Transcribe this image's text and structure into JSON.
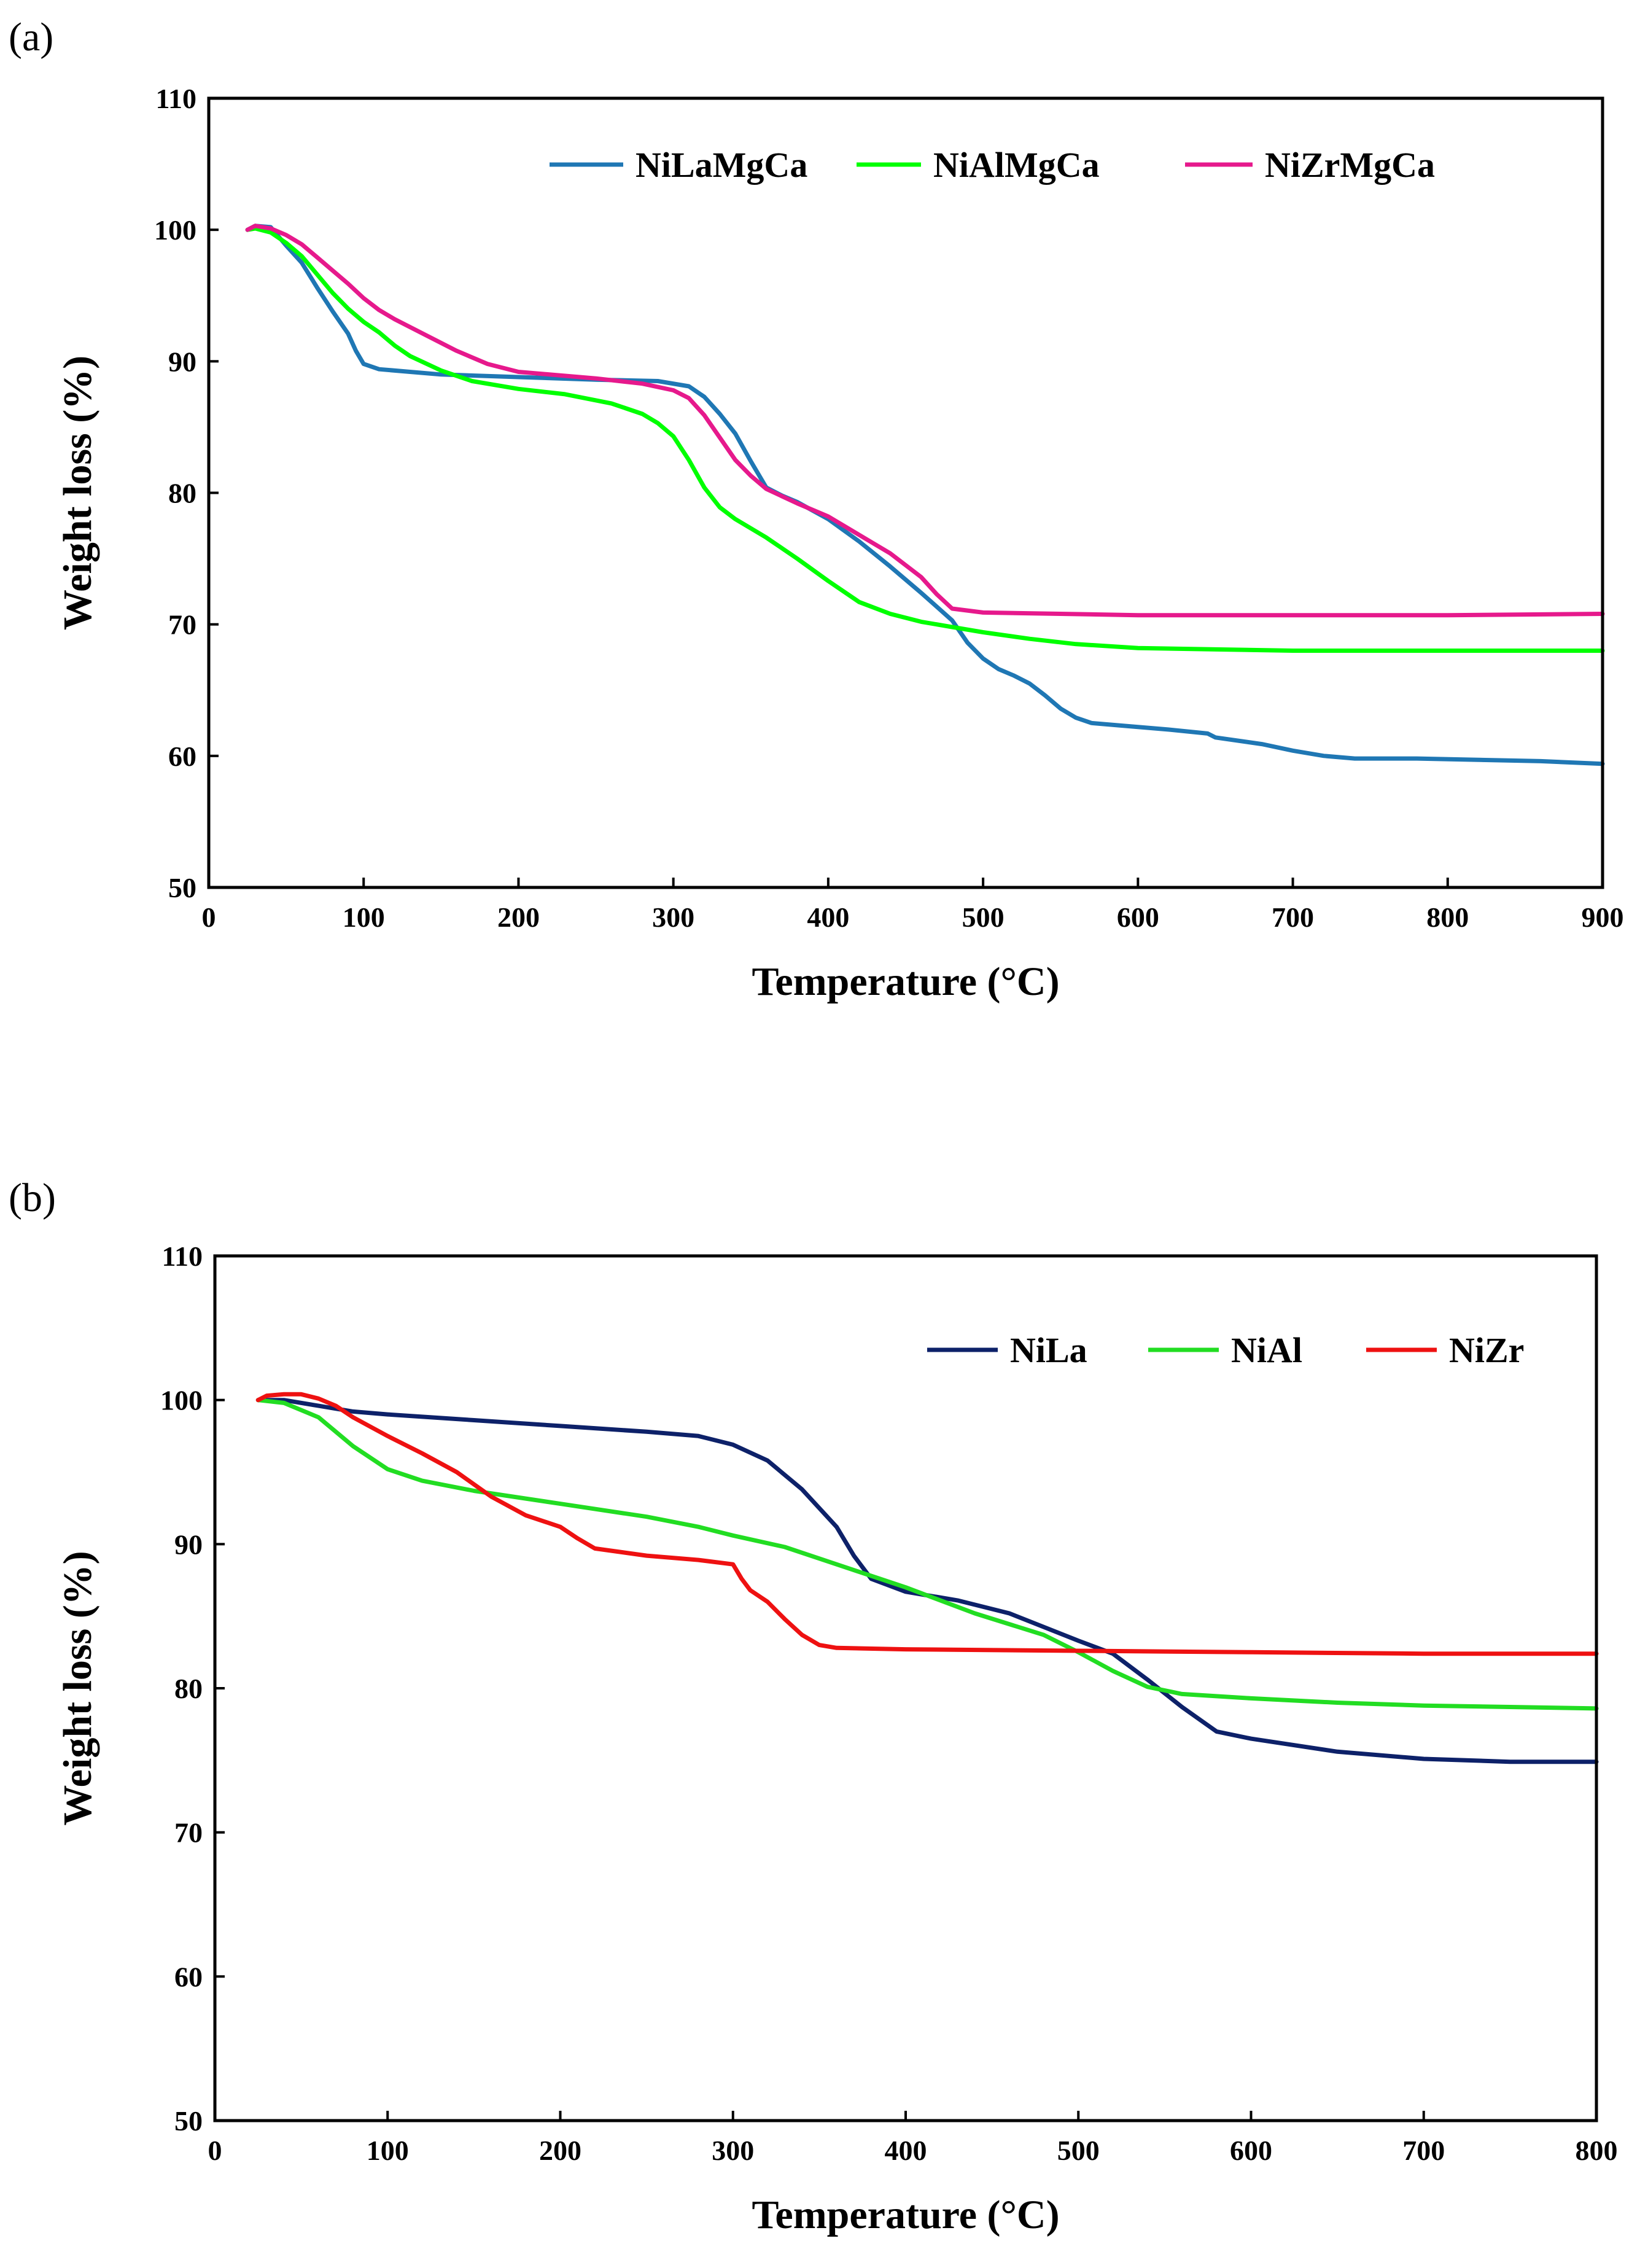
{
  "chart_data": [
    {
      "panel": "(a)",
      "type": "line",
      "title": "",
      "xlabel": "Temperature (°C)",
      "ylabel": "Weight loss (%)",
      "xlim": [
        0,
        900
      ],
      "ylim": [
        50,
        110
      ],
      "xticks": [
        0,
        100,
        200,
        300,
        400,
        500,
        600,
        700,
        800,
        900
      ],
      "yticks": [
        50,
        60,
        70,
        80,
        90,
        100,
        110
      ],
      "grid": false,
      "legend": "top",
      "series": [
        {
          "name": "NiLaMgCa",
          "color": "#1f77b4",
          "points": [
            [
              25,
              100
            ],
            [
              30,
              100.3
            ],
            [
              40,
              100.2
            ],
            [
              50,
              98.8
            ],
            [
              60,
              97.5
            ],
            [
              70,
              95.6
            ],
            [
              80,
              93.8
            ],
            [
              90,
              92.1
            ],
            [
              95,
              90.8
            ],
            [
              100,
              89.8
            ],
            [
              110,
              89.4
            ],
            [
              130,
              89.2
            ],
            [
              150,
              89
            ],
            [
              200,
              88.8
            ],
            [
              250,
              88.6
            ],
            [
              290,
              88.5
            ],
            [
              310,
              88.1
            ],
            [
              320,
              87.3
            ],
            [
              330,
              86
            ],
            [
              340,
              84.5
            ],
            [
              350,
              82.4
            ],
            [
              360,
              80.4
            ],
            [
              370,
              79.8
            ],
            [
              380,
              79.3
            ],
            [
              400,
              78
            ],
            [
              420,
              76.3
            ],
            [
              440,
              74.4
            ],
            [
              460,
              72.4
            ],
            [
              480,
              70.3
            ],
            [
              490,
              68.6
            ],
            [
              500,
              67.4
            ],
            [
              510,
              66.6
            ],
            [
              520,
              66.1
            ],
            [
              530,
              65.5
            ],
            [
              540,
              64.6
            ],
            [
              550,
              63.6
            ],
            [
              560,
              62.9
            ],
            [
              570,
              62.5
            ],
            [
              590,
              62.3
            ],
            [
              620,
              62
            ],
            [
              645,
              61.7
            ],
            [
              650,
              61.4
            ],
            [
              680,
              60.9
            ],
            [
              700,
              60.4
            ],
            [
              720,
              60
            ],
            [
              740,
              59.8
            ],
            [
              780,
              59.8
            ],
            [
              820,
              59.7
            ],
            [
              860,
              59.6
            ],
            [
              900,
              59.4
            ]
          ]
        },
        {
          "name": "NiAlMgCa",
          "color": "#00ff00",
          "points": [
            [
              25,
              100
            ],
            [
              30,
              100.1
            ],
            [
              40,
              99.8
            ],
            [
              50,
              99
            ],
            [
              60,
              98
            ],
            [
              70,
              96.6
            ],
            [
              80,
              95.2
            ],
            [
              90,
              94
            ],
            [
              100,
              93
            ],
            [
              110,
              92.2
            ],
            [
              120,
              91.2
            ],
            [
              130,
              90.4
            ],
            [
              150,
              89.3
            ],
            [
              170,
              88.5
            ],
            [
              200,
              87.9
            ],
            [
              230,
              87.5
            ],
            [
              260,
              86.8
            ],
            [
              280,
              86
            ],
            [
              290,
              85.3
            ],
            [
              300,
              84.3
            ],
            [
              310,
              82.5
            ],
            [
              320,
              80.4
            ],
            [
              330,
              78.9
            ],
            [
              340,
              78
            ],
            [
              360,
              76.6
            ],
            [
              380,
              75
            ],
            [
              400,
              73.3
            ],
            [
              420,
              71.7
            ],
            [
              440,
              70.8
            ],
            [
              460,
              70.2
            ],
            [
              480,
              69.8
            ],
            [
              500,
              69.4
            ],
            [
              530,
              68.9
            ],
            [
              560,
              68.5
            ],
            [
              600,
              68.2
            ],
            [
              650,
              68.1
            ],
            [
              700,
              68
            ],
            [
              800,
              68
            ],
            [
              900,
              68
            ]
          ]
        },
        {
          "name": "NiZrMgCa",
          "color": "#e6198c",
          "points": [
            [
              25,
              100
            ],
            [
              30,
              100.3
            ],
            [
              40,
              100.1
            ],
            [
              50,
              99.6
            ],
            [
              60,
              98.9
            ],
            [
              70,
              97.9
            ],
            [
              80,
              96.9
            ],
            [
              90,
              95.9
            ],
            [
              100,
              94.8
            ],
            [
              110,
              93.9
            ],
            [
              120,
              93.2
            ],
            [
              140,
              92
            ],
            [
              160,
              90.8
            ],
            [
              180,
              89.8
            ],
            [
              200,
              89.2
            ],
            [
              250,
              88.7
            ],
            [
              280,
              88.3
            ],
            [
              300,
              87.8
            ],
            [
              310,
              87.2
            ],
            [
              320,
              85.9
            ],
            [
              330,
              84.2
            ],
            [
              340,
              82.5
            ],
            [
              350,
              81.3
            ],
            [
              360,
              80.3
            ],
            [
              380,
              79.2
            ],
            [
              400,
              78.2
            ],
            [
              420,
              76.8
            ],
            [
              440,
              75.4
            ],
            [
              460,
              73.6
            ],
            [
              470,
              72.3
            ],
            [
              480,
              71.2
            ],
            [
              500,
              70.9
            ],
            [
              550,
              70.8
            ],
            [
              600,
              70.7
            ],
            [
              650,
              70.7
            ],
            [
              700,
              70.7
            ],
            [
              800,
              70.7
            ],
            [
              900,
              70.8
            ]
          ]
        }
      ]
    },
    {
      "panel": "(b)",
      "type": "line",
      "title": "",
      "xlabel": "Temperature (°C)",
      "ylabel": "Weight loss (%)",
      "xlim": [
        0,
        800
      ],
      "ylim": [
        50,
        110
      ],
      "xticks": [
        0,
        100,
        200,
        300,
        400,
        500,
        600,
        700,
        800
      ],
      "yticks": [
        50,
        60,
        70,
        80,
        90,
        100,
        110
      ],
      "grid": false,
      "legend": "top-right",
      "series": [
        {
          "name": "NiLa",
          "color": "#0d2169",
          "points": [
            [
              25,
              100
            ],
            [
              40,
              100
            ],
            [
              60,
              99.6
            ],
            [
              80,
              99.2
            ],
            [
              100,
              99
            ],
            [
              150,
              98.6
            ],
            [
              200,
              98.2
            ],
            [
              250,
              97.8
            ],
            [
              280,
              97.5
            ],
            [
              300,
              96.9
            ],
            [
              320,
              95.8
            ],
            [
              340,
              93.8
            ],
            [
              360,
              91.2
            ],
            [
              370,
              89.2
            ],
            [
              380,
              87.6
            ],
            [
              400,
              86.7
            ],
            [
              430,
              86.1
            ],
            [
              460,
              85.2
            ],
            [
              500,
              83.3
            ],
            [
              520,
              82.4
            ],
            [
              540,
              80.6
            ],
            [
              560,
              78.7
            ],
            [
              580,
              77
            ],
            [
              600,
              76.5
            ],
            [
              650,
              75.6
            ],
            [
              700,
              75.1
            ],
            [
              750,
              74.9
            ],
            [
              800,
              74.9
            ]
          ]
        },
        {
          "name": "NiAl",
          "color": "#22dd22",
          "points": [
            [
              25,
              100
            ],
            [
              40,
              99.8
            ],
            [
              60,
              98.8
            ],
            [
              80,
              96.8
            ],
            [
              100,
              95.2
            ],
            [
              120,
              94.4
            ],
            [
              150,
              93.7
            ],
            [
              200,
              92.8
            ],
            [
              250,
              91.9
            ],
            [
              280,
              91.2
            ],
            [
              300,
              90.6
            ],
            [
              330,
              89.8
            ],
            [
              360,
              88.6
            ],
            [
              400,
              87
            ],
            [
              440,
              85.2
            ],
            [
              480,
              83.7
            ],
            [
              500,
              82.5
            ],
            [
              520,
              81.2
            ],
            [
              540,
              80.1
            ],
            [
              560,
              79.6
            ],
            [
              600,
              79.3
            ],
            [
              650,
              79
            ],
            [
              700,
              78.8
            ],
            [
              750,
              78.7
            ],
            [
              800,
              78.6
            ]
          ]
        },
        {
          "name": "NiZr",
          "color": "#ee1111",
          "points": [
            [
              25,
              100
            ],
            [
              30,
              100.3
            ],
            [
              40,
              100.4
            ],
            [
              50,
              100.4
            ],
            [
              60,
              100.1
            ],
            [
              70,
              99.6
            ],
            [
              80,
              98.8
            ],
            [
              100,
              97.5
            ],
            [
              120,
              96.3
            ],
            [
              140,
              95
            ],
            [
              160,
              93.3
            ],
            [
              180,
              92
            ],
            [
              200,
              91.2
            ],
            [
              210,
              90.4
            ],
            [
              220,
              89.7
            ],
            [
              250,
              89.2
            ],
            [
              280,
              88.9
            ],
            [
              300,
              88.6
            ],
            [
              305,
              87.6
            ],
            [
              310,
              86.8
            ],
            [
              320,
              86
            ],
            [
              330,
              84.8
            ],
            [
              340,
              83.7
            ],
            [
              350,
              83
            ],
            [
              360,
              82.8
            ],
            [
              400,
              82.7
            ],
            [
              500,
              82.6
            ],
            [
              600,
              82.5
            ],
            [
              700,
              82.4
            ],
            [
              800,
              82.4
            ]
          ]
        }
      ]
    }
  ]
}
